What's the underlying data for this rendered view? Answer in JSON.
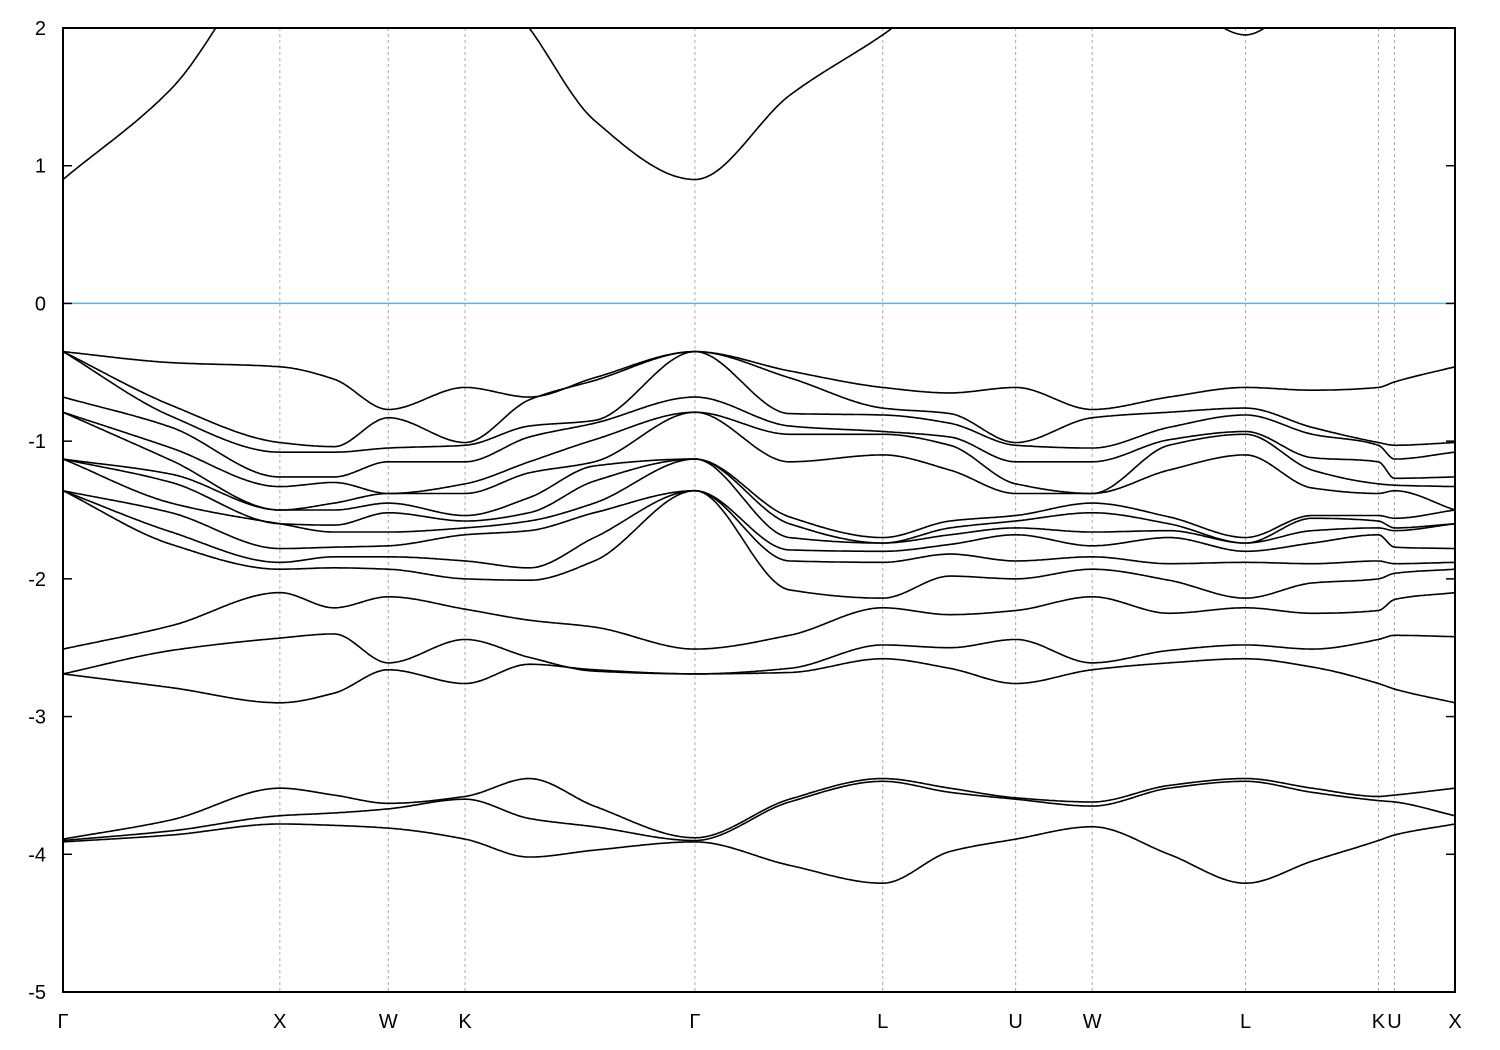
{
  "chart_data": {
    "type": "line",
    "title": "",
    "xlabel": "",
    "ylabel": "",
    "ylim": [
      -5,
      2
    ],
    "yticks": [
      -5,
      -4,
      -3,
      -2,
      -1,
      0,
      1,
      2
    ],
    "ytick_labels": [
      "-5",
      "-4",
      "-3",
      "-2",
      "-1",
      "0",
      "1",
      "2"
    ],
    "grid": "vertical dashed lines at high-symmetry points",
    "legend": "none",
    "fermi_level": 0,
    "fermi_color": "#56b4e9",
    "band_color": "#000000",
    "xticks": [
      {
        "label": "Γ",
        "k": 0
      },
      {
        "label": "X",
        "k": 1.0
      },
      {
        "label": "W",
        "k": 1.5
      },
      {
        "label": "K",
        "k": 1.854
      },
      {
        "label": "Γ",
        "k": 2.914
      },
      {
        "label": "L",
        "k": 3.78
      },
      {
        "label": "U",
        "k": 4.393
      },
      {
        "label": "W",
        "k": 4.746
      },
      {
        "label": "L",
        "k": 5.453
      },
      {
        "label": "K",
        "k": 6.066
      },
      {
        "label": "U",
        "k": 6.14
      },
      {
        "label": "X",
        "k": 6.419
      }
    ],
    "k": [
      0,
      0.5,
      1,
      1.25,
      1.5,
      1.854,
      2.15,
      2.45,
      2.914,
      3.35,
      3.78,
      4.09,
      4.393,
      4.746,
      5.1,
      5.453,
      5.76,
      6.066,
      6.14,
      6.419
    ],
    "bands": [
      [
        0.9,
        1.56,
        2.6,
        2.8,
        2.8,
        2.6,
        2.0,
        1.33,
        0.9,
        1.51,
        1.95,
        2.3,
        2.5,
        2.6,
        2.3,
        1.95,
        2.3,
        2.6,
        2.6,
        2.6
      ],
      [
        -0.35,
        -0.43,
        -0.46,
        -0.55,
        -0.77,
        -0.61,
        -0.68,
        -0.54,
        -0.35,
        -0.49,
        -0.61,
        -0.65,
        -0.61,
        -0.77,
        -0.68,
        -0.61,
        -0.63,
        -0.61,
        -0.57,
        -0.46
      ],
      [
        -0.35,
        -0.74,
        -1.01,
        -1.04,
        -0.83,
        -1.01,
        -0.7,
        -0.56,
        -0.35,
        -0.54,
        -0.76,
        -0.8,
        -1.01,
        -0.83,
        -0.79,
        -0.76,
        -0.9,
        -1.01,
        -1.03,
        -1.01
      ],
      [
        -0.35,
        -0.82,
        -1.08,
        -1.08,
        -1.05,
        -1.03,
        -0.89,
        -0.85,
        -0.35,
        -0.8,
        -0.81,
        -0.87,
        -1.03,
        -1.05,
        -0.9,
        -0.81,
        -0.95,
        -1.03,
        -1.13,
        -1.08
      ],
      [
        -0.68,
        -0.9,
        -1.26,
        -1.26,
        -1.15,
        -1.15,
        -0.97,
        -0.87,
        -0.68,
        -0.89,
        -0.93,
        -0.97,
        -1.15,
        -1.15,
        -0.99,
        -0.93,
        -1.12,
        -1.15,
        -1.27,
        -1.26
      ],
      [
        -0.79,
        -1.05,
        -1.33,
        -1.3,
        -1.38,
        -1.31,
        -1.15,
        -0.99,
        -0.79,
        -0.95,
        -0.95,
        -1.03,
        -1.31,
        -1.38,
        -1.03,
        -0.95,
        -1.21,
        -1.31,
        -1.32,
        -1.33
      ],
      [
        -0.79,
        -1.14,
        -1.5,
        -1.45,
        -1.38,
        -1.38,
        -1.23,
        -1.15,
        -0.79,
        -1.15,
        -1.1,
        -1.21,
        -1.38,
        -1.38,
        -1.21,
        -1.1,
        -1.34,
        -1.38,
        -1.36,
        -1.5
      ],
      [
        -1.13,
        -1.24,
        -1.5,
        -1.5,
        -1.45,
        -1.54,
        -1.41,
        -1.18,
        -1.13,
        -1.55,
        -1.7,
        -1.58,
        -1.54,
        -1.45,
        -1.55,
        -1.7,
        -1.54,
        -1.54,
        -1.56,
        -1.5
      ],
      [
        -1.13,
        -1.3,
        -1.6,
        -1.61,
        -1.52,
        -1.58,
        -1.52,
        -1.29,
        -1.13,
        -1.6,
        -1.74,
        -1.63,
        -1.58,
        -1.52,
        -1.6,
        -1.74,
        -1.56,
        -1.58,
        -1.63,
        -1.6
      ],
      [
        -1.13,
        -1.45,
        -1.6,
        -1.66,
        -1.66,
        -1.63,
        -1.58,
        -1.45,
        -1.13,
        -1.7,
        -1.74,
        -1.68,
        -1.63,
        -1.66,
        -1.65,
        -1.74,
        -1.65,
        -1.63,
        -1.65,
        -1.6
      ],
      [
        -1.36,
        -1.52,
        -1.78,
        -1.77,
        -1.76,
        -1.68,
        -1.65,
        -1.52,
        -1.36,
        -1.79,
        -1.8,
        -1.75,
        -1.68,
        -1.76,
        -1.7,
        -1.8,
        -1.74,
        -1.68,
        -1.77,
        -1.78
      ],
      [
        -1.36,
        -1.66,
        -1.88,
        -1.84,
        -1.84,
        -1.87,
        -1.92,
        -1.7,
        -1.36,
        -1.87,
        -1.88,
        -1.82,
        -1.87,
        -1.84,
        -1.89,
        -1.88,
        -1.89,
        -1.87,
        -1.89,
        -1.88
      ],
      [
        -1.36,
        -1.75,
        -1.93,
        -1.92,
        -1.93,
        -2.0,
        -2.01,
        -1.87,
        -1.36,
        -2.08,
        -2.14,
        -1.98,
        -2.0,
        -1.93,
        -2.01,
        -2.14,
        -2.03,
        -2.0,
        -1.96,
        -1.93
      ],
      [
        -2.51,
        -2.34,
        -2.1,
        -2.21,
        -2.13,
        -2.22,
        -2.3,
        -2.35,
        -2.51,
        -2.41,
        -2.21,
        -2.26,
        -2.23,
        -2.13,
        -2.25,
        -2.21,
        -2.25,
        -2.23,
        -2.15,
        -2.1
      ],
      [
        -2.69,
        -2.52,
        -2.43,
        -2.4,
        -2.61,
        -2.44,
        -2.57,
        -2.67,
        -2.69,
        -2.65,
        -2.48,
        -2.5,
        -2.44,
        -2.61,
        -2.52,
        -2.48,
        -2.51,
        -2.44,
        -2.41,
        -2.42
      ],
      [
        -2.69,
        -2.79,
        -2.9,
        -2.83,
        -2.66,
        -2.76,
        -2.62,
        -2.66,
        -2.69,
        -2.68,
        -2.58,
        -2.65,
        -2.76,
        -2.66,
        -2.61,
        -2.58,
        -2.64,
        -2.76,
        -2.8,
        -2.9
      ],
      [
        -3.89,
        -3.75,
        -3.52,
        -3.57,
        -3.63,
        -3.58,
        -3.45,
        -3.65,
        -3.88,
        -3.6,
        -3.45,
        -3.52,
        -3.59,
        -3.62,
        -3.5,
        -3.45,
        -3.52,
        -3.58,
        -3.57,
        -3.52
      ],
      [
        -3.9,
        -3.83,
        -3.72,
        -3.7,
        -3.67,
        -3.6,
        -3.74,
        -3.8,
        -3.9,
        -3.62,
        -3.47,
        -3.55,
        -3.6,
        -3.65,
        -3.52,
        -3.47,
        -3.55,
        -3.61,
        -3.62,
        -3.72
      ],
      [
        -3.91,
        -3.86,
        -3.78,
        -3.79,
        -3.81,
        -3.89,
        -4.02,
        -3.97,
        -3.91,
        -4.08,
        -4.21,
        -3.98,
        -3.89,
        -3.8,
        -4.0,
        -4.21,
        -4.05,
        -3.9,
        -3.86,
        -3.78
      ]
    ]
  }
}
